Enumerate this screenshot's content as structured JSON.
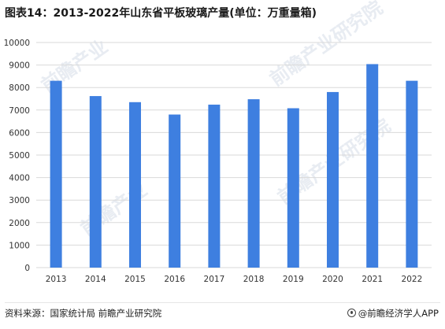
{
  "title": "图表14：2013-2022年山东省平板玻璃产量(单位：万重量箱)",
  "source_text": "资料来源：国家统计局 前瞻产业研究院",
  "credit_text": "@前瞻经济学人APP",
  "watermark_texts": [
    "前瞻产业",
    "前瞻产业研究院",
    "前瞻产业",
    "前瞻产业研究院"
  ],
  "colors": {
    "bar": "#3e7fe0",
    "grid": "#d9d9d9",
    "axis_text": "#333333"
  },
  "chart_data": {
    "type": "bar",
    "title": "图表14：2013-2022年山东省平板玻璃产量(单位：万重量箱)",
    "xlabel": "",
    "ylabel": "",
    "categories": [
      "2013",
      "2014",
      "2015",
      "2016",
      "2017",
      "2018",
      "2019",
      "2020",
      "2021",
      "2022"
    ],
    "values": [
      8300,
      7620,
      7350,
      6800,
      7240,
      7480,
      7080,
      7800,
      9040,
      8300
    ],
    "ylim": [
      0,
      10000
    ],
    "yticks": [
      "0",
      "1000",
      "2000",
      "3000",
      "4000",
      "5000",
      "6000",
      "7000",
      "8000",
      "9000",
      "10000"
    ],
    "grid": true,
    "legend": "none"
  }
}
